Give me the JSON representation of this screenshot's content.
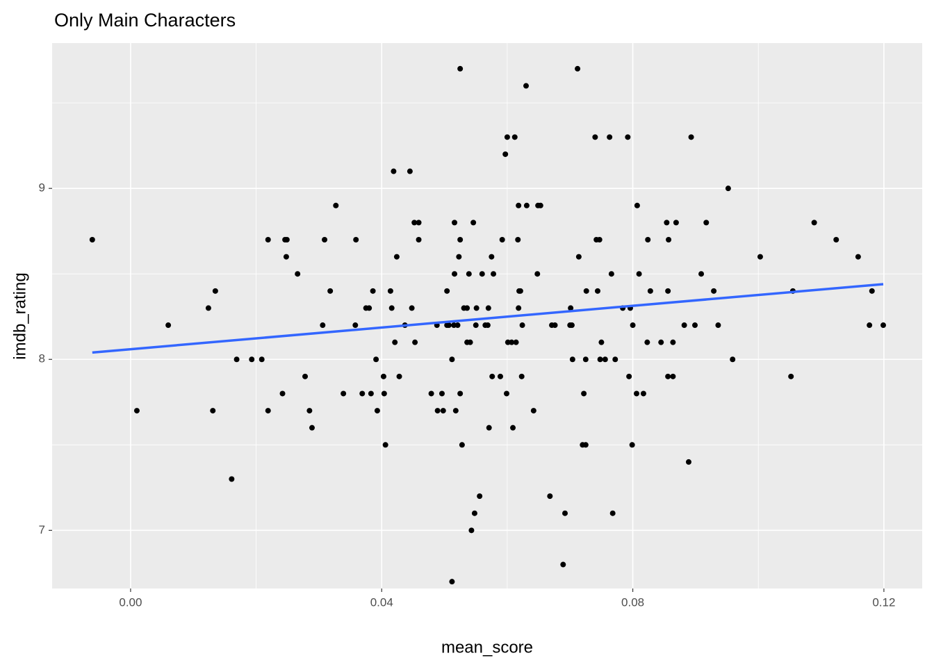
{
  "chart_data": {
    "type": "scatter",
    "title": "Only Main Characters",
    "x_label": "mean_score",
    "y_label": "imdb_rating",
    "xlim": [
      -0.0125,
      0.1261
    ],
    "ylim": [
      6.66,
      9.85
    ],
    "xticks": [
      {
        "value": 0,
        "label": "0.00"
      },
      {
        "value": 0.04,
        "label": "0.04"
      },
      {
        "value": 0.08,
        "label": "0.08"
      },
      {
        "value": 0.12,
        "label": "0.12"
      }
    ],
    "yticks": [
      7,
      8,
      9
    ],
    "x_minor_breaks": [
      0.02,
      0.06,
      0.1
    ],
    "y_minor_breaks": [
      7.5,
      8.5,
      9.5
    ],
    "grid": true,
    "series": [
      {
        "color": "#000000",
        "x": [
          -0.0061,
          0.001,
          0.006,
          0.0124,
          0.0131,
          0.0135,
          0.0161,
          0.0169,
          0.0193,
          0.0209,
          0.0219,
          0.0219,
          0.0242,
          0.0246,
          0.0249,
          0.0248,
          0.0266,
          0.0278,
          0.0285,
          0.0289,
          0.0306,
          0.0309,
          0.0318,
          0.0327,
          0.0339,
          0.0358,
          0.0359,
          0.0369,
          0.0375,
          0.038,
          0.0383,
          0.0386,
          0.0391,
          0.0393,
          0.0403,
          0.0404,
          0.0406,
          0.0414,
          0.0416,
          0.0419,
          0.0421,
          0.0424,
          0.0428,
          0.0437,
          0.0445,
          0.0448,
          0.0452,
          0.0453,
          0.0459,
          0.0459,
          0.0479,
          0.0488,
          0.0489,
          0.0496,
          0.0498,
          0.0504,
          0.0504,
          0.0507,
          0.0512,
          0.0512,
          0.0515,
          0.0516,
          0.0516,
          0.0518,
          0.0521,
          0.0523,
          0.0525,
          0.0525,
          0.0525,
          0.0528,
          0.0531,
          0.0536,
          0.0536,
          0.0539,
          0.0541,
          0.0543,
          0.0546,
          0.0548,
          0.055,
          0.0551,
          0.0556,
          0.056,
          0.0565,
          0.0569,
          0.057,
          0.0571,
          0.0575,
          0.0576,
          0.0578,
          0.0589,
          0.0592,
          0.0597,
          0.0599,
          0.06,
          0.0601,
          0.0607,
          0.0609,
          0.0612,
          0.0614,
          0.0617,
          0.0618,
          0.0618,
          0.0619,
          0.0621,
          0.0623,
          0.0624,
          0.063,
          0.0631,
          0.0642,
          0.0648,
          0.0649,
          0.0653,
          0.0668,
          0.0671,
          0.0676,
          0.0689,
          0.0692,
          0.07,
          0.0701,
          0.0703,
          0.0704,
          0.0712,
          0.0714,
          0.072,
          0.0722,
          0.0725,
          0.0725,
          0.0726,
          0.074,
          0.0742,
          0.0744,
          0.0747,
          0.0748,
          0.075,
          0.0756,
          0.0763,
          0.0766,
          0.0768,
          0.0772,
          0.0784,
          0.0792,
          0.0794,
          0.0796,
          0.0799,
          0.08,
          0.0806,
          0.0807,
          0.081,
          0.0817,
          0.0823,
          0.0824,
          0.0828,
          0.0845,
          0.0854,
          0.0856,
          0.0856,
          0.0857,
          0.0864,
          0.0864,
          0.0869,
          0.0882,
          0.0889,
          0.0893,
          0.0899,
          0.0909,
          0.0917,
          0.0929,
          0.0936,
          0.0952,
          0.0959,
          0.1003,
          0.1052,
          0.1055,
          0.1089,
          0.1124,
          0.1159,
          0.1177,
          0.1181,
          0.1199
        ],
        "values": [
          8.7,
          7.7,
          8.2,
          8.3,
          7.7,
          8.4,
          7.3,
          8.0,
          8.0,
          8.0,
          8.7,
          7.7,
          7.8,
          8.7,
          8.7,
          8.6,
          8.5,
          7.9,
          7.7,
          7.6,
          8.2,
          8.7,
          8.4,
          8.9,
          7.8,
          8.2,
          8.7,
          7.8,
          8.3,
          8.3,
          7.8,
          8.4,
          8.0,
          7.7,
          7.9,
          7.8,
          7.5,
          8.4,
          8.3,
          9.1,
          8.1,
          8.6,
          7.9,
          8.2,
          9.1,
          8.3,
          8.8,
          8.1,
          8.8,
          8.7,
          7.8,
          8.2,
          7.7,
          7.8,
          7.7,
          8.4,
          8.2,
          8.2,
          8.0,
          6.7,
          8.2,
          8.8,
          8.5,
          7.7,
          8.2,
          8.6,
          8.7,
          7.8,
          9.7,
          7.5,
          8.3,
          8.3,
          8.1,
          8.5,
          8.1,
          7.0,
          8.8,
          7.1,
          8.2,
          8.3,
          7.2,
          8.5,
          8.2,
          8.2,
          8.3,
          7.6,
          8.6,
          7.9,
          8.5,
          7.9,
          8.7,
          9.2,
          7.8,
          9.3,
          8.1,
          8.1,
          7.6,
          9.3,
          8.1,
          8.7,
          8.9,
          8.3,
          8.4,
          8.4,
          7.9,
          8.2,
          9.6,
          8.9,
          7.7,
          8.5,
          8.9,
          8.9,
          7.2,
          8.2,
          8.2,
          6.8,
          7.1,
          8.2,
          8.3,
          8.2,
          8.0,
          9.7,
          8.6,
          7.5,
          7.8,
          7.5,
          8.0,
          8.4,
          9.3,
          8.7,
          8.4,
          8.7,
          8.0,
          8.1,
          8.0,
          9.3,
          8.5,
          7.1,
          8.0,
          8.3,
          9.3,
          7.9,
          8.3,
          7.5,
          8.2,
          7.8,
          8.9,
          8.5,
          7.8,
          8.1,
          8.7,
          8.4,
          8.1,
          8.8,
          8.4,
          7.9,
          8.7,
          8.1,
          7.9,
          8.8,
          8.2,
          7.4,
          9.3,
          8.2,
          8.5,
          8.8,
          8.4,
          8.2,
          9.0,
          8.0,
          8.6,
          7.9,
          8.4,
          8.8,
          8.7,
          8.6,
          8.2,
          8.4,
          8.2
        ]
      }
    ],
    "trend": {
      "color": "#3366ff",
      "x": [
        -0.0061,
        0.1199
      ],
      "values": [
        8.04,
        8.44
      ]
    }
  }
}
